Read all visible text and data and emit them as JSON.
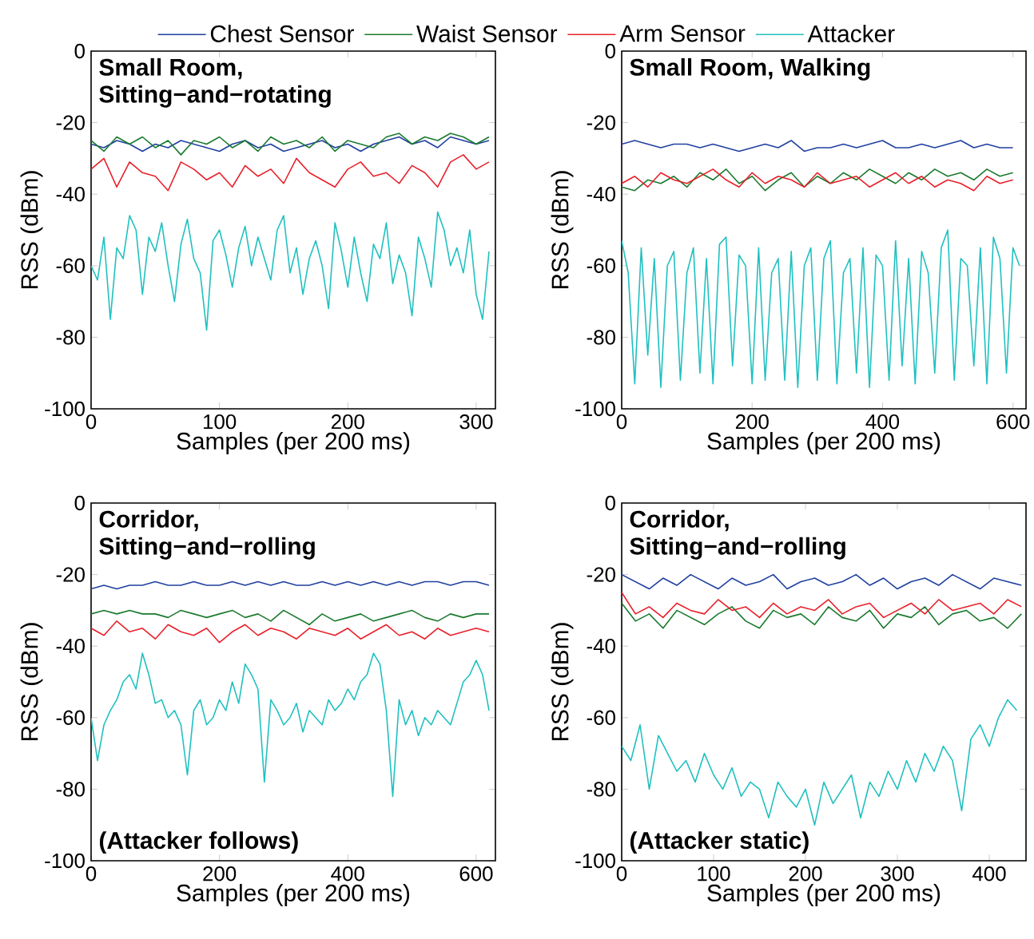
{
  "chart_data": [
    {
      "type": "line",
      "title": "Small Room,",
      "subtitle": "Sitting−and−rotating",
      "xlabel": "Samples (per 200 ms)",
      "ylabel": "RSS (dBm)",
      "legend": "top",
      "xlim": [
        0,
        315
      ],
      "ylim": [
        -100,
        0
      ],
      "xticks": [
        0,
        100,
        200,
        300
      ],
      "yticks": [
        -100,
        -80,
        -60,
        -40,
        -20,
        0
      ],
      "x": [
        0,
        10,
        20,
        30,
        40,
        50,
        60,
        70,
        80,
        90,
        100,
        110,
        120,
        130,
        140,
        150,
        160,
        170,
        180,
        190,
        200,
        210,
        220,
        230,
        240,
        250,
        260,
        270,
        280,
        290,
        300,
        310
      ],
      "series": [
        {
          "name": "Chest Sensor",
          "color": "#2040a0",
          "values": [
            -26,
            -27,
            -25,
            -26,
            -28,
            -26,
            -27,
            -25,
            -26,
            -27,
            -28,
            -26,
            -25,
            -27,
            -26,
            -28,
            -27,
            -26,
            -25,
            -27,
            -26,
            -28,
            -26,
            -25,
            -24,
            -26,
            -25,
            -27,
            -24,
            -25,
            -26,
            -25
          ]
        },
        {
          "name": "Waist Sensor",
          "color": "#1a7a2e",
          "values": [
            -25,
            -28,
            -24,
            -26,
            -24,
            -27,
            -25,
            -29,
            -25,
            -26,
            -24,
            -27,
            -25,
            -28,
            -24,
            -26,
            -25,
            -27,
            -24,
            -28,
            -25,
            -26,
            -27,
            -24,
            -23,
            -26,
            -24,
            -25,
            -23,
            -24,
            -26,
            -24
          ]
        },
        {
          "name": "Arm Sensor",
          "color": "#e8202a",
          "values": [
            -33,
            -30,
            -38,
            -31,
            -34,
            -35,
            -39,
            -31,
            -33,
            -36,
            -34,
            -38,
            -32,
            -35,
            -33,
            -37,
            -30,
            -34,
            -36,
            -38,
            -33,
            -31,
            -35,
            -34,
            -37,
            -32,
            -34,
            -38,
            -31,
            -29,
            -33,
            -31
          ]
        },
        {
          "name": "Attacker",
          "color": "#20c0c0",
          "x": [
            0,
            5,
            10,
            15,
            20,
            25,
            30,
            35,
            40,
            45,
            50,
            55,
            60,
            65,
            70,
            75,
            80,
            85,
            90,
            95,
            100,
            105,
            110,
            115,
            120,
            125,
            130,
            135,
            140,
            145,
            150,
            155,
            160,
            165,
            170,
            175,
            180,
            185,
            190,
            195,
            200,
            205,
            210,
            215,
            220,
            225,
            230,
            235,
            240,
            245,
            250,
            255,
            260,
            265,
            270,
            275,
            280,
            285,
            290,
            295,
            300,
            305,
            310
          ],
          "values": [
            -60,
            -64,
            -52,
            -75,
            -55,
            -58,
            -46,
            -50,
            -68,
            -52,
            -56,
            -48,
            -60,
            -70,
            -54,
            -47,
            -58,
            -62,
            -78,
            -53,
            -50,
            -57,
            -66,
            -55,
            -49,
            -60,
            -52,
            -58,
            -64,
            -50,
            -46,
            -62,
            -55,
            -68,
            -58,
            -53,
            -60,
            -72,
            -48,
            -56,
            -66,
            -52,
            -62,
            -70,
            -54,
            -58,
            -48,
            -65,
            -57,
            -62,
            -74,
            -52,
            -58,
            -66,
            -45,
            -50,
            -60,
            -55,
            -62,
            -50,
            -68,
            -75,
            -56
          ]
        }
      ]
    },
    {
      "type": "line",
      "title": "Small Room, Walking",
      "xlabel": "Samples (per 200 ms)",
      "ylabel": "RSS (dBm)",
      "xlim": [
        0,
        620
      ],
      "ylim": [
        -100,
        0
      ],
      "xticks": [
        0,
        200,
        400,
        600
      ],
      "yticks": [
        -100,
        -80,
        -60,
        -40,
        -20,
        0
      ],
      "x": [
        0,
        20,
        40,
        60,
        80,
        100,
        120,
        140,
        160,
        180,
        200,
        220,
        240,
        260,
        280,
        300,
        320,
        340,
        360,
        380,
        400,
        420,
        440,
        460,
        480,
        500,
        520,
        540,
        560,
        580,
        600
      ],
      "series": [
        {
          "color": "#2040a0",
          "values": [
            -26,
            -25,
            -26,
            -27,
            -26,
            -26,
            -27,
            -26,
            -27,
            -28,
            -27,
            -26,
            -27,
            -25,
            -28,
            -27,
            -27,
            -26,
            -27,
            -26,
            -25,
            -27,
            -27,
            -26,
            -27,
            -26,
            -25,
            -27,
            -26,
            -27,
            -27
          ]
        },
        {
          "color": "#1a7a2e",
          "values": [
            -38,
            -39,
            -36,
            -37,
            -35,
            -38,
            -34,
            -36,
            -33,
            -37,
            -35,
            -39,
            -36,
            -34,
            -38,
            -35,
            -37,
            -34,
            -36,
            -33,
            -35,
            -37,
            -34,
            -36,
            -33,
            -35,
            -34,
            -36,
            -33,
            -35,
            -34
          ]
        },
        {
          "color": "#e8202a",
          "values": [
            -37,
            -35,
            -38,
            -34,
            -36,
            -37,
            -35,
            -33,
            -36,
            -38,
            -34,
            -37,
            -35,
            -36,
            -38,
            -34,
            -37,
            -36,
            -35,
            -38,
            -36,
            -34,
            -37,
            -35,
            -38,
            -36,
            -37,
            -39,
            -35,
            -37,
            -36
          ]
        },
        {
          "color": "#20c0c0",
          "x": [
            0,
            10,
            20,
            30,
            40,
            50,
            60,
            70,
            80,
            90,
            100,
            110,
            120,
            130,
            140,
            150,
            160,
            170,
            180,
            190,
            200,
            210,
            220,
            230,
            240,
            250,
            260,
            270,
            280,
            290,
            300,
            310,
            320,
            330,
            340,
            350,
            360,
            370,
            380,
            390,
            400,
            410,
            420,
            430,
            440,
            450,
            460,
            470,
            480,
            490,
            500,
            510,
            520,
            530,
            540,
            550,
            560,
            570,
            580,
            590,
            600,
            610
          ],
          "values": [
            -53,
            -62,
            -93,
            -55,
            -85,
            -58,
            -94,
            -60,
            -56,
            -92,
            -62,
            -55,
            -90,
            -58,
            -93,
            -54,
            -52,
            -88,
            -57,
            -60,
            -93,
            -55,
            -92,
            -62,
            -58,
            -92,
            -56,
            -94,
            -60,
            -55,
            -92,
            -58,
            -53,
            -93,
            -62,
            -58,
            -90,
            -55,
            -94,
            -57,
            -60,
            -92,
            -53,
            -88,
            -58,
            -93,
            -56,
            -62,
            -90,
            -55,
            -50,
            -92,
            -58,
            -60,
            -88,
            -55,
            -93,
            -52,
            -58,
            -90,
            -55,
            -60
          ]
        }
      ]
    },
    {
      "type": "line",
      "title": "Corridor,",
      "subtitle": "Sitting−and−rolling",
      "xlabel": "Samples (per 200 ms)",
      "ylabel": "RSS (dBm)",
      "annotations": [
        "(Attacker follows)"
      ],
      "xlim": [
        0,
        630
      ],
      "ylim": [
        -100,
        0
      ],
      "xticks": [
        0,
        200,
        400,
        600
      ],
      "yticks": [
        -100,
        -80,
        -60,
        -40,
        -20,
        0
      ],
      "x": [
        0,
        20,
        40,
        60,
        80,
        100,
        120,
        140,
        160,
        180,
        200,
        220,
        240,
        260,
        280,
        300,
        320,
        340,
        360,
        380,
        400,
        420,
        440,
        460,
        480,
        500,
        520,
        540,
        560,
        580,
        600,
        620
      ],
      "series": [
        {
          "color": "#2040a0",
          "values": [
            -24,
            -23,
            -24,
            -23,
            -23,
            -22,
            -23,
            -23,
            -22,
            -23,
            -23,
            -22,
            -23,
            -22,
            -23,
            -22,
            -23,
            -23,
            -22,
            -23,
            -22,
            -23,
            -22,
            -23,
            -22,
            -23,
            -22,
            -22,
            -23,
            -22,
            -22,
            -23
          ]
        },
        {
          "color": "#1a7a2e",
          "values": [
            -31,
            -30,
            -31,
            -30,
            -31,
            -31,
            -32,
            -30,
            -31,
            -32,
            -31,
            -30,
            -32,
            -31,
            -33,
            -30,
            -32,
            -34,
            -31,
            -33,
            -32,
            -31,
            -33,
            -32,
            -31,
            -30,
            -32,
            -33,
            -31,
            -32,
            -31,
            -31
          ]
        },
        {
          "color": "#e8202a",
          "values": [
            -35,
            -37,
            -33,
            -36,
            -35,
            -38,
            -34,
            -36,
            -37,
            -35,
            -39,
            -36,
            -34,
            -37,
            -35,
            -36,
            -38,
            -35,
            -36,
            -37,
            -35,
            -38,
            -36,
            -34,
            -37,
            -36,
            -38,
            -35,
            -37,
            -36,
            -35,
            -36
          ]
        },
        {
          "color": "#20c0c0",
          "x": [
            0,
            10,
            20,
            30,
            40,
            50,
            60,
            70,
            80,
            90,
            100,
            110,
            120,
            130,
            140,
            150,
            160,
            170,
            180,
            190,
            200,
            210,
            220,
            230,
            240,
            250,
            260,
            270,
            280,
            290,
            300,
            310,
            320,
            330,
            340,
            350,
            360,
            370,
            380,
            390,
            400,
            410,
            420,
            430,
            440,
            450,
            460,
            470,
            480,
            490,
            500,
            510,
            520,
            530,
            540,
            550,
            560,
            570,
            580,
            590,
            600,
            610,
            620
          ],
          "values": [
            -60,
            -72,
            -62,
            -58,
            -55,
            -50,
            -48,
            -52,
            -42,
            -48,
            -56,
            -55,
            -60,
            -58,
            -62,
            -76,
            -58,
            -55,
            -62,
            -60,
            -55,
            -58,
            -50,
            -56,
            -45,
            -48,
            -52,
            -78,
            -55,
            -58,
            -62,
            -60,
            -56,
            -64,
            -58,
            -60,
            -62,
            -55,
            -58,
            -56,
            -52,
            -55,
            -50,
            -48,
            -42,
            -45,
            -58,
            -82,
            -55,
            -62,
            -58,
            -65,
            -60,
            -62,
            -58,
            -60,
            -62,
            -56,
            -50,
            -48,
            -44,
            -48,
            -58
          ]
        }
      ]
    },
    {
      "type": "line",
      "title": "Corridor,",
      "subtitle": "Sitting−and−rolling",
      "xlabel": "Samples (per 200 ms)",
      "ylabel": "RSS (dBm)",
      "annotations": [
        "(Attacker static)"
      ],
      "xlim": [
        0,
        440
      ],
      "ylim": [
        -100,
        0
      ],
      "xticks": [
        0,
        100,
        200,
        300,
        400
      ],
      "yticks": [
        -100,
        -80,
        -60,
        -40,
        -20,
        0
      ],
      "x": [
        0,
        15,
        30,
        45,
        60,
        75,
        90,
        105,
        120,
        135,
        150,
        165,
        180,
        195,
        210,
        225,
        240,
        255,
        270,
        285,
        300,
        315,
        330,
        345,
        360,
        375,
        390,
        405,
        420,
        435
      ],
      "series": [
        {
          "color": "#2040a0",
          "values": [
            -20,
            -22,
            -24,
            -21,
            -23,
            -20,
            -22,
            -24,
            -21,
            -23,
            -22,
            -20,
            -24,
            -22,
            -21,
            -23,
            -22,
            -20,
            -23,
            -21,
            -24,
            -22,
            -21,
            -23,
            -20,
            -22,
            -24,
            -21,
            -22,
            -23
          ]
        },
        {
          "color": "#1a7a2e",
          "values": [
            -28,
            -33,
            -31,
            -35,
            -30,
            -32,
            -34,
            -31,
            -29,
            -33,
            -35,
            -30,
            -32,
            -31,
            -34,
            -29,
            -32,
            -33,
            -30,
            -35,
            -31,
            -32,
            -29,
            -34,
            -31,
            -30,
            -33,
            -32,
            -35,
            -31
          ]
        },
        {
          "color": "#e8202a",
          "values": [
            -25,
            -31,
            -29,
            -32,
            -28,
            -30,
            -31,
            -27,
            -30,
            -29,
            -32,
            -28,
            -31,
            -29,
            -30,
            -27,
            -31,
            -29,
            -28,
            -32,
            -30,
            -28,
            -31,
            -27,
            -30,
            -29,
            -28,
            -31,
            -27,
            -29
          ]
        },
        {
          "color": "#20c0c0",
          "x": [
            0,
            10,
            20,
            30,
            40,
            50,
            60,
            70,
            80,
            90,
            100,
            110,
            120,
            130,
            140,
            150,
            160,
            170,
            180,
            190,
            200,
            210,
            220,
            230,
            240,
            250,
            260,
            270,
            280,
            290,
            300,
            310,
            320,
            330,
            340,
            350,
            360,
            370,
            380,
            390,
            400,
            410,
            420,
            430
          ],
          "values": [
            -68,
            -72,
            -62,
            -80,
            -65,
            -70,
            -75,
            -72,
            -78,
            -70,
            -76,
            -80,
            -74,
            -82,
            -78,
            -80,
            -88,
            -78,
            -82,
            -85,
            -80,
            -90,
            -78,
            -84,
            -80,
            -76,
            -88,
            -78,
            -82,
            -75,
            -80,
            -72,
            -78,
            -70,
            -75,
            -68,
            -72,
            -86,
            -66,
            -62,
            -68,
            -60,
            -55,
            -58
          ]
        }
      ]
    }
  ]
}
